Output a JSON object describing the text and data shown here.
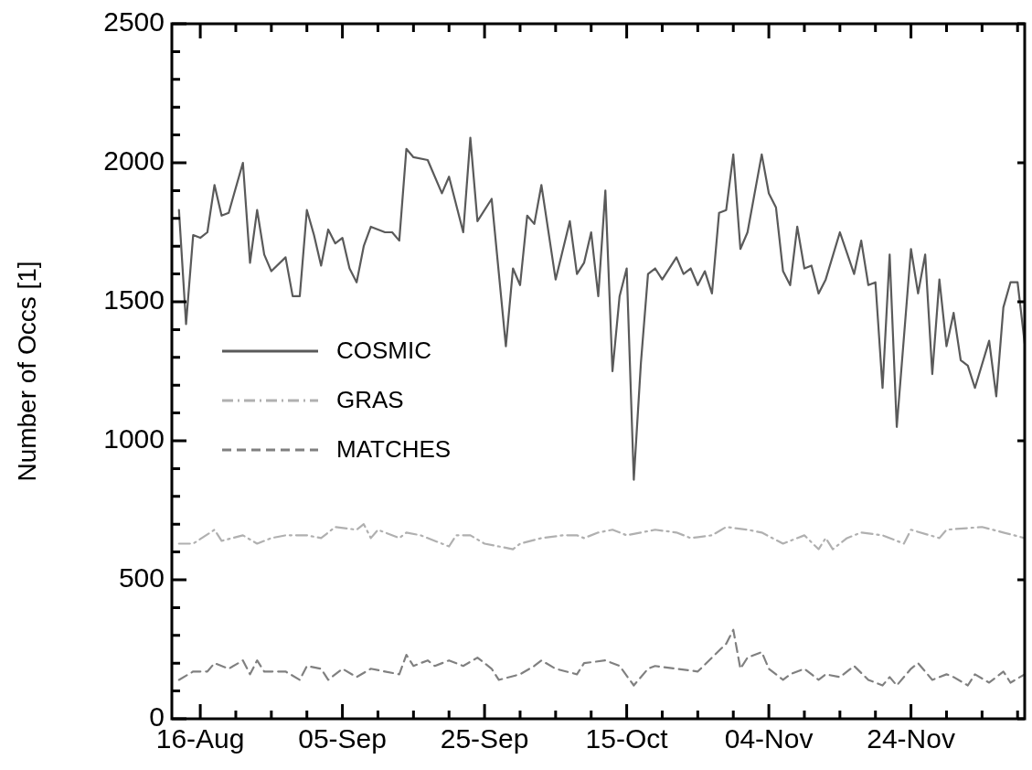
{
  "chart_data": {
    "type": "line",
    "ylabel": "Number of Occs [1]",
    "legend": "left",
    "grid": false,
    "marker": "none",
    "xlim": [
      "--08-12",
      "--12-10"
    ],
    "xticks": [
      {
        "value": "--08-16",
        "label": "16-Aug"
      },
      {
        "value": "--08-21",
        "label": null
      },
      {
        "value": "--08-26",
        "label": null
      },
      {
        "value": "--08-31",
        "label": null
      },
      {
        "value": "--09-05",
        "label": "05-Sep"
      },
      {
        "value": "--09-10",
        "label": null
      },
      {
        "value": "--09-15",
        "label": null
      },
      {
        "value": "--09-20",
        "label": null
      },
      {
        "value": "--09-25",
        "label": "25-Sep"
      },
      {
        "value": "--09-30",
        "label": null
      },
      {
        "value": "--10-05",
        "label": null
      },
      {
        "value": "--10-10",
        "label": null
      },
      {
        "value": "--10-15",
        "label": "15-Oct"
      },
      {
        "value": "--10-20",
        "label": null
      },
      {
        "value": "--10-25",
        "label": null
      },
      {
        "value": "--10-30",
        "label": null
      },
      {
        "value": "--11-04",
        "label": "04-Nov"
      },
      {
        "value": "--11-09",
        "label": null
      },
      {
        "value": "--11-14",
        "label": null
      },
      {
        "value": "--11-19",
        "label": null
      },
      {
        "value": "--11-24",
        "label": "24-Nov"
      },
      {
        "value": "--11-29",
        "label": null
      },
      {
        "value": "--12-04",
        "label": null
      },
      {
        "value": "--12-09",
        "label": null
      }
    ],
    "ylim": [
      0,
      2500
    ],
    "yticks": [
      0,
      {
        "value": 100,
        "label": null
      },
      {
        "value": 200,
        "label": null
      },
      {
        "value": 300,
        "label": null
      },
      {
        "value": 400,
        "label": null
      },
      500,
      {
        "value": 600,
        "label": null
      },
      {
        "value": 700,
        "label": null
      },
      {
        "value": 800,
        "label": null
      },
      {
        "value": 900,
        "label": null
      },
      1000,
      {
        "value": 1100,
        "label": null
      },
      {
        "value": 1200,
        "label": null
      },
      {
        "value": 1300,
        "label": null
      },
      {
        "value": 1400,
        "label": null
      },
      1500,
      {
        "value": 1600,
        "label": null
      },
      {
        "value": 1700,
        "label": null
      },
      {
        "value": 1800,
        "label": null
      },
      {
        "value": 1900,
        "label": null
      },
      2000,
      {
        "value": 2100,
        "label": null
      },
      {
        "value": 2200,
        "label": null
      },
      {
        "value": 2300,
        "label": null
      },
      {
        "value": 2400,
        "label": null
      },
      2500
    ],
    "series": [
      {
        "name": "COSMIC",
        "color": "#5a5a5a",
        "line_style": "solid",
        "x": [
          "--08-13",
          "--08-14",
          "--08-15",
          "--08-16",
          "--08-17",
          "--08-18",
          "--08-19",
          "--08-20",
          "--08-22",
          "--08-23",
          "--08-24",
          "--08-25",
          "--08-26",
          "--08-28",
          "--08-29",
          "--08-30",
          "--08-31",
          "--09-01",
          "--09-02",
          "--09-03",
          "--09-04",
          "--09-05",
          "--09-06",
          "--09-07",
          "--09-08",
          "--09-09",
          "--09-11",
          "--09-12",
          "--09-13",
          "--09-14",
          "--09-15",
          "--09-17",
          "--09-19",
          "--09-20",
          "--09-22",
          "--09-23",
          "--09-24",
          "--09-26",
          "--09-28",
          "--09-29",
          "--09-30",
          "--10-01",
          "--10-02",
          "--10-03",
          "--10-05",
          "--10-07",
          "--10-08",
          "--10-09",
          "--10-10",
          "--10-11",
          "--10-12",
          "--10-13",
          "--10-14",
          "--10-15",
          "--10-16",
          "--10-17",
          "--10-18",
          "--10-19",
          "--10-20",
          "--10-22",
          "--10-23",
          "--10-24",
          "--10-25",
          "--10-26",
          "--10-27",
          "--10-28",
          "--10-29",
          "--10-30",
          "--10-31",
          "--11-01",
          "--11-03",
          "--11-04",
          "--11-05",
          "--11-06",
          "--11-07",
          "--11-08",
          "--11-09",
          "--11-10",
          "--11-11",
          "--11-12",
          "--11-14",
          "--11-16",
          "--11-17",
          "--11-18",
          "--11-19",
          "--11-20",
          "--11-21",
          "--11-22",
          "--11-24",
          "--11-25",
          "--11-26",
          "--11-27",
          "--11-28",
          "--11-29",
          "--11-30",
          "--12-01",
          "--12-02",
          "--12-03",
          "--12-05",
          "--12-06",
          "--12-07",
          "--12-08",
          "--12-09",
          "--12-10"
        ],
        "values": [
          1830,
          1420,
          1740,
          1730,
          1750,
          1920,
          1810,
          1820,
          2000,
          1640,
          1830,
          1670,
          1610,
          1660,
          1520,
          1520,
          1830,
          1740,
          1630,
          1760,
          1710,
          1730,
          1620,
          1570,
          1700,
          1770,
          1750,
          1750,
          1720,
          2050,
          2020,
          2010,
          1890,
          1950,
          1750,
          2090,
          1790,
          1870,
          1340,
          1620,
          1560,
          1810,
          1780,
          1920,
          1580,
          1790,
          1600,
          1640,
          1750,
          1520,
          1900,
          1250,
          1520,
          1620,
          860,
          1280,
          1600,
          1620,
          1580,
          1660,
          1600,
          1620,
          1560,
          1610,
          1530,
          1820,
          1830,
          2030,
          1690,
          1750,
          2030,
          1890,
          1840,
          1610,
          1560,
          1770,
          1620,
          1630,
          1530,
          1580,
          1750,
          1600,
          1720,
          1560,
          1570,
          1190,
          1670,
          1050,
          1690,
          1530,
          1670,
          1240,
          1580,
          1340,
          1460,
          1290,
          1270,
          1190,
          1360,
          1160,
          1480,
          1570,
          1570,
          1350
        ]
      },
      {
        "name": "GRAS",
        "color": "#b0b0b0",
        "line_style": "dashdot",
        "x": [
          "--08-13",
          "--08-15",
          "--08-18",
          "--08-19",
          "--08-22",
          "--08-24",
          "--08-26",
          "--08-28",
          "--08-31",
          "--09-02",
          "--09-04",
          "--09-07",
          "--09-08",
          "--09-09",
          "--09-10",
          "--09-13",
          "--09-14",
          "--09-16",
          "--09-19",
          "--09-20",
          "--09-21",
          "--09-23",
          "--09-25",
          "--09-27",
          "--09-29",
          "--09-30",
          "--10-03",
          "--10-06",
          "--10-08",
          "--10-09",
          "--10-11",
          "--10-13",
          "--10-15",
          "--10-19",
          "--10-22",
          "--10-24",
          "--10-27",
          "--10-29",
          "--11-01",
          "--11-03",
          "--11-06",
          "--11-09",
          "--11-11",
          "--11-12",
          "--11-13",
          "--11-15",
          "--11-17",
          "--11-20",
          "--11-23",
          "--11-24",
          "--11-28",
          "--11-29",
          "--12-04",
          "--12-07",
          "--12-10"
        ],
        "values": [
          630,
          630,
          680,
          640,
          660,
          630,
          650,
          660,
          660,
          650,
          690,
          680,
          700,
          650,
          680,
          650,
          670,
          660,
          630,
          620,
          660,
          660,
          630,
          620,
          610,
          630,
          650,
          660,
          660,
          650,
          670,
          680,
          660,
          680,
          670,
          650,
          660,
          690,
          680,
          670,
          630,
          660,
          610,
          650,
          610,
          650,
          670,
          660,
          630,
          680,
          650,
          680,
          690,
          670,
          650
        ]
      },
      {
        "name": "MATCHES",
        "color": "#808080",
        "line_style": "dashed",
        "x": [
          "--08-13",
          "--08-15",
          "--08-17",
          "--08-18",
          "--08-20",
          "--08-22",
          "--08-23",
          "--08-24",
          "--08-25",
          "--08-28",
          "--08-30",
          "--08-31",
          "--09-02",
          "--09-03",
          "--09-05",
          "--09-07",
          "--09-09",
          "--09-11",
          "--09-13",
          "--09-14",
          "--09-15",
          "--09-17",
          "--09-18",
          "--09-20",
          "--09-22",
          "--09-24",
          "--09-26",
          "--09-27",
          "--09-30",
          "--10-02",
          "--10-03",
          "--10-05",
          "--10-08",
          "--10-09",
          "--10-12",
          "--10-14",
          "--10-16",
          "--10-18",
          "--10-19",
          "--10-22",
          "--10-25",
          "--10-27",
          "--10-29",
          "--10-30",
          "--10-31",
          "--11-01",
          "--11-03",
          "--11-04",
          "--11-06",
          "--11-07",
          "--11-09",
          "--11-11",
          "--11-12",
          "--11-14",
          "--11-16",
          "--11-18",
          "--11-20",
          "--11-21",
          "--11-22",
          "--11-24",
          "--11-25",
          "--11-27",
          "--11-29",
          "--11-30",
          "--12-02",
          "--12-03",
          "--12-05",
          "--12-07",
          "--12-08",
          "--12-10"
        ],
        "values": [
          140,
          170,
          170,
          200,
          180,
          210,
          160,
          210,
          170,
          170,
          140,
          190,
          180,
          140,
          180,
          150,
          180,
          170,
          160,
          230,
          190,
          210,
          190,
          210,
          190,
          220,
          180,
          140,
          160,
          190,
          210,
          180,
          160,
          200,
          210,
          190,
          120,
          180,
          190,
          180,
          170,
          220,
          270,
          320,
          180,
          220,
          240,
          180,
          140,
          160,
          180,
          140,
          160,
          150,
          190,
          140,
          120,
          150,
          120,
          180,
          200,
          140,
          160,
          150,
          120,
          160,
          130,
          170,
          130,
          160
        ]
      }
    ]
  }
}
